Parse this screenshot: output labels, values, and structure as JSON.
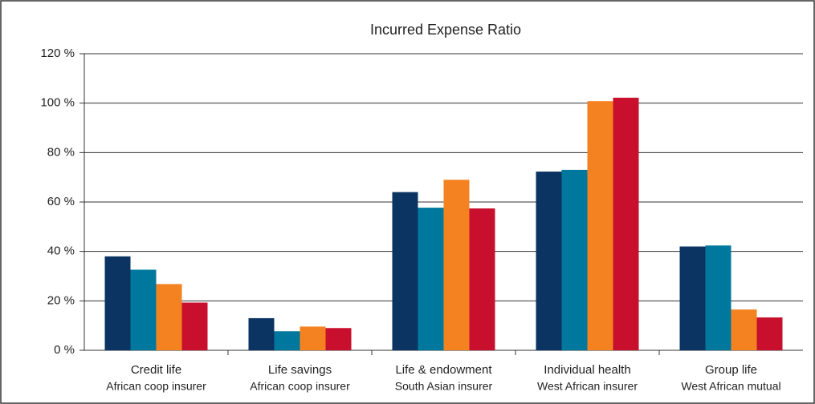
{
  "chart_data": {
    "type": "bar",
    "title": "Incurred Expense Ratio",
    "categories": [
      [
        "Credit life",
        "African coop insurer"
      ],
      [
        "Life savings",
        "African coop insurer"
      ],
      [
        "Life & endowment",
        "South Asian insurer"
      ],
      [
        "Individual health",
        "West African insurer"
      ],
      [
        "Group life",
        "West African mutual"
      ]
    ],
    "series": [
      {
        "color": "#0b3463",
        "values": [
          38,
          13,
          64,
          72.3,
          42
        ]
      },
      {
        "color": "#00789e",
        "values": [
          32.6,
          7.7,
          57.7,
          73,
          42.4
        ]
      },
      {
        "color": "#f58220",
        "values": [
          26.8,
          9.6,
          69,
          100.8,
          16.5
        ]
      },
      {
        "color": "#c8102e",
        "values": [
          19.3,
          9,
          57.4,
          102.2,
          13.3
        ]
      }
    ],
    "ylim": [
      0,
      120
    ],
    "yticks": [
      {
        "value": 0,
        "label": "0 %"
      },
      {
        "value": 20,
        "label": "20 %"
      },
      {
        "value": 40,
        "label": "40 %"
      },
      {
        "value": 60,
        "label": "60 %"
      },
      {
        "value": 80,
        "label": "80 %"
      },
      {
        "value": 100,
        "label": "100 %"
      },
      {
        "value": 120,
        "label": "120 %"
      }
    ],
    "grid": true
  }
}
